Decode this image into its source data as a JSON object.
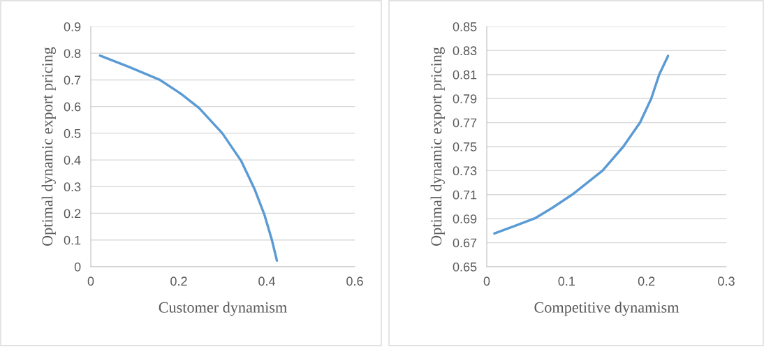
{
  "chart_data": [
    {
      "type": "line",
      "xlabel": "Customer dynamism",
      "ylabel": "Optimal dynamic export pricing",
      "xlim": [
        0,
        0.6
      ],
      "xticks": [
        0,
        0.2,
        0.4,
        0.6
      ],
      "ylim": [
        0,
        0.9
      ],
      "yticks": [
        0,
        0.1,
        0.2,
        0.3,
        0.4,
        0.5,
        0.6,
        0.7,
        0.8,
        0.9
      ],
      "grid": "y",
      "legend": false,
      "series": [
        {
          "color": "#5b9bd5",
          "x": [
            0.021,
            0.086,
            0.156,
            0.204,
            0.246,
            0.299,
            0.342,
            0.372,
            0.395,
            0.412,
            0.423
          ],
          "values": [
            0.791,
            0.749,
            0.701,
            0.649,
            0.595,
            0.5,
            0.396,
            0.292,
            0.193,
            0.098,
            0.023
          ]
        }
      ]
    },
    {
      "type": "line",
      "xlabel": "Competitive dynamism",
      "ylabel": "Optimal dynamic export pricing",
      "xlim": [
        0,
        0.3
      ],
      "xticks": [
        0,
        0.1,
        0.2,
        0.3
      ],
      "ylim": [
        0.65,
        0.85
      ],
      "yticks": [
        0.65,
        0.67,
        0.69,
        0.71,
        0.73,
        0.75,
        0.77,
        0.79,
        0.81,
        0.83,
        0.85
      ],
      "grid": "y",
      "legend": false,
      "series": [
        {
          "color": "#5b9bd5",
          "x": [
            0.0096,
            0.035,
            0.061,
            0.082,
            0.107,
            0.145,
            0.171,
            0.192,
            0.206,
            0.216,
            0.227
          ],
          "values": [
            0.6777,
            0.684,
            0.6905,
            0.699,
            0.71,
            0.73,
            0.75,
            0.77,
            0.79,
            0.81,
            0.8255
          ]
        }
      ]
    }
  ]
}
